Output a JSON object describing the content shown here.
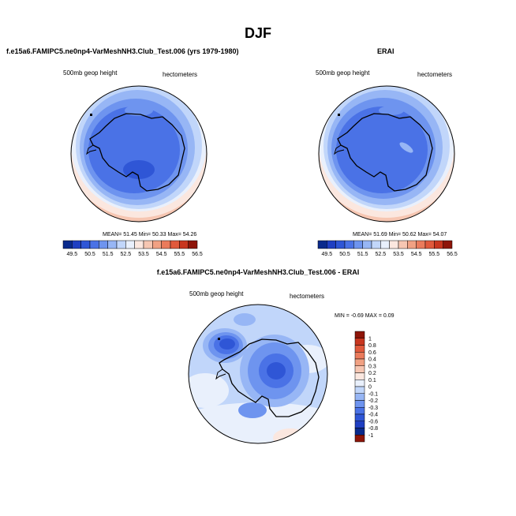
{
  "title": "DJF",
  "colors": {
    "palette": [
      "#0a2a8c",
      "#1f3fc2",
      "#2f56d6",
      "#4a72e6",
      "#6e94ef",
      "#97b6f5",
      "#c1d6fa",
      "#e9f0fc",
      "#fbe7df",
      "#f6c6b2",
      "#f1a183",
      "#ea7b5c",
      "#e0593c",
      "#c8361f",
      "#8e1509"
    ],
    "diff_palette": [
      "#0a2a8c",
      "#1f3fc2",
      "#2f56d6",
      "#4a72e6",
      "#6e94ef",
      "#97b6f5",
      "#c1d6fa",
      "#e9f0fc",
      "#fbe7df",
      "#f6c6b2",
      "#f1a183",
      "#ea7b5c",
      "#e0593c",
      "#c8361f",
      "#8e1509"
    ]
  },
  "panels": {
    "model": {
      "title": "f.e15a6.FAMIPC5.ne0np4-VarMeshNH3.Club_Test.006 (yrs 1979-1980)",
      "left_label": "500mb geop height",
      "right_label": "hectometers",
      "stats": "MEAN=  51.45  Min=  50.33  Max=  54.26"
    },
    "obs": {
      "title": "ERAI",
      "left_label": "500mb geop height",
      "right_label": "hectometers",
      "stats": "MEAN=  51.69  Min=  50.62  Max=  54.07"
    },
    "diff": {
      "title": "f.e15a6.FAMIPC5.ne0np4-VarMeshNH3.Club_Test.006 - ERAI",
      "left_label": "500mb geop height",
      "right_label": "hectometers",
      "stats": "MIN =  -0.69 MAX =    0.09"
    }
  },
  "chart_data": [
    {
      "type": "heatmap",
      "title": "f.e15a6.FAMIPC5.ne0np4-VarMeshNH3.Club_Test.006 (yrs 1979-1980)",
      "variable": "500mb geop height",
      "units": "hectometers",
      "projection": "south polar stereographic",
      "mean": 51.45,
      "min": 50.33,
      "max": 54.26,
      "colorbar_levels": [
        49.5,
        50,
        50.5,
        51,
        51.5,
        52,
        52.5,
        53,
        53.5,
        54,
        54.5,
        55,
        55.5,
        56,
        56.5
      ],
      "colorbar_labels": [
        "49.5",
        "50.5",
        "51.5",
        "52.5",
        "53.5",
        "54.5",
        "55.5",
        "56.5"
      ]
    },
    {
      "type": "heatmap",
      "title": "ERAI",
      "variable": "500mb geop height",
      "units": "hectometers",
      "projection": "south polar stereographic",
      "mean": 51.69,
      "min": 50.62,
      "max": 54.07,
      "colorbar_levels": [
        49.5,
        50,
        50.5,
        51,
        51.5,
        52,
        52.5,
        53,
        53.5,
        54,
        54.5,
        55,
        55.5,
        56,
        56.5
      ],
      "colorbar_labels": [
        "49.5",
        "50.5",
        "51.5",
        "52.5",
        "53.5",
        "54.5",
        "55.5",
        "56.5"
      ]
    },
    {
      "type": "heatmap",
      "title": "f.e15a6.FAMIPC5.ne0np4-VarMeshNH3.Club_Test.006 - ERAI",
      "variable": "500mb geop height",
      "units": "hectometers",
      "projection": "south polar stereographic",
      "min": -0.69,
      "max": 0.09,
      "colorbar_labels": [
        "1",
        "0.8",
        "0.6",
        "0.4",
        "0.3",
        "0.2",
        "0.1",
        "0",
        "-0.1",
        "-0.2",
        "-0.3",
        "-0.4",
        "-0.6",
        "-0.8",
        "-1"
      ]
    }
  ]
}
